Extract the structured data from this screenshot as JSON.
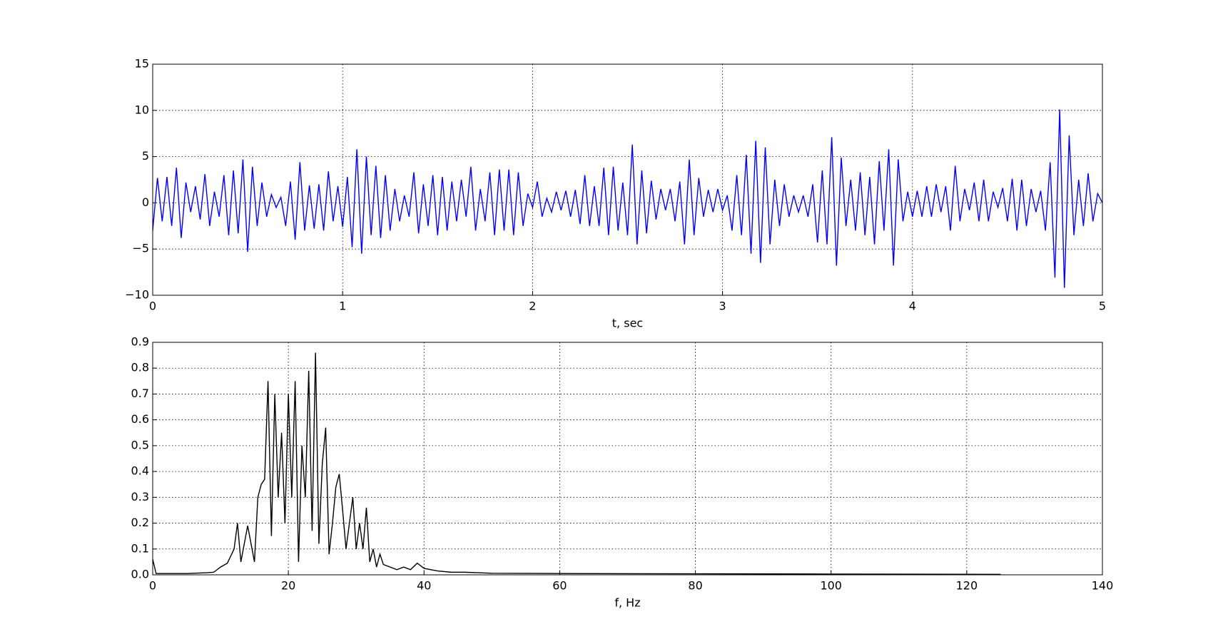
{
  "chart_data": [
    {
      "type": "line",
      "x_label": "t, sec",
      "grid": true,
      "xlim": [
        0,
        5
      ],
      "xticks": [
        0,
        1,
        2,
        3,
        4,
        5
      ],
      "ylim": [
        -10,
        15
      ],
      "yticks": [
        {
          "value": -10,
          "label": "−10"
        },
        {
          "value": -5,
          "label": "−5"
        },
        0,
        5,
        10,
        15
      ],
      "x": [
        0,
        0.025,
        0.05,
        0.075,
        0.1,
        0.125,
        0.15,
        0.175,
        0.2,
        0.225,
        0.25,
        0.275,
        0.3,
        0.325,
        0.35,
        0.375,
        0.4,
        0.425,
        0.45,
        0.475,
        0.5,
        0.525,
        0.55,
        0.575,
        0.6,
        0.625,
        0.65,
        0.675,
        0.7,
        0.725,
        0.75,
        0.775,
        0.8,
        0.825,
        0.85,
        0.875,
        0.9,
        0.925,
        0.95,
        0.975,
        1,
        1.025,
        1.05,
        1.075,
        1.1,
        1.125,
        1.15,
        1.175,
        1.2,
        1.225,
        1.25,
        1.275,
        1.3,
        1.325,
        1.35,
        1.375,
        1.4,
        1.425,
        1.45,
        1.475,
        1.5,
        1.525,
        1.55,
        1.575,
        1.6,
        1.625,
        1.65,
        1.675,
        1.7,
        1.725,
        1.75,
        1.775,
        1.8,
        1.825,
        1.85,
        1.875,
        1.9,
        1.925,
        1.95,
        1.975,
        2,
        2.025,
        2.05,
        2.075,
        2.1,
        2.125,
        2.15,
        2.175,
        2.2,
        2.225,
        2.25,
        2.275,
        2.3,
        2.325,
        2.35,
        2.375,
        2.4,
        2.425,
        2.45,
        2.475,
        2.5,
        2.525,
        2.55,
        2.575,
        2.6,
        2.625,
        2.65,
        2.675,
        2.7,
        2.725,
        2.75,
        2.775,
        2.8,
        2.825,
        2.85,
        2.875,
        2.9,
        2.925,
        2.95,
        2.975,
        3,
        3.025,
        3.05,
        3.075,
        3.1,
        3.125,
        3.15,
        3.175,
        3.2,
        3.225,
        3.25,
        3.275,
        3.3,
        3.325,
        3.35,
        3.375,
        3.4,
        3.425,
        3.45,
        3.475,
        3.5,
        3.525,
        3.55,
        3.575,
        3.6,
        3.625,
        3.65,
        3.675,
        3.7,
        3.725,
        3.75,
        3.775,
        3.8,
        3.825,
        3.85,
        3.875,
        3.9,
        3.925,
        3.95,
        3.975,
        4,
        4.025,
        4.05,
        4.075,
        4.1,
        4.125,
        4.15,
        4.175,
        4.2,
        4.225,
        4.25,
        4.275,
        4.3,
        4.325,
        4.35,
        4.375,
        4.4,
        4.425,
        4.45,
        4.475,
        4.5,
        4.525,
        4.55,
        4.575,
        4.6,
        4.625,
        4.65,
        4.675,
        4.7,
        4.725,
        4.75,
        4.775,
        4.8,
        4.825,
        4.85,
        4.875,
        4.9,
        4.925,
        4.95,
        4.975,
        5
      ],
      "series": [
        {
          "color": "#0000ff",
          "values": [
            -3,
            2.7,
            -2,
            2.8,
            -2.5,
            3.8,
            -3.8,
            2.2,
            -1,
            1.8,
            -1.8,
            3.1,
            -2.5,
            1.2,
            -1.5,
            3,
            -3.5,
            3.5,
            -3.3,
            4.7,
            -5.3,
            3.9,
            -2.5,
            2.2,
            -1.5,
            0.9,
            -0.5,
            0.6,
            -2.5,
            2.3,
            -4,
            4.4,
            -3,
            1.9,
            -2.8,
            2,
            -3,
            3.4,
            -2,
            1.8,
            -2.6,
            2.8,
            -4.8,
            5.8,
            -5.5,
            5,
            -3.5,
            4,
            -3.8,
            3,
            -3,
            1.5,
            -2,
            0.8,
            -1.5,
            3.3,
            -3.3,
            2,
            -2.5,
            3,
            -3.5,
            2.8,
            -3,
            2.3,
            -2,
            2.5,
            -1.5,
            3.9,
            -3,
            1.5,
            -2,
            3.3,
            -3.5,
            3.6,
            -3,
            3.6,
            -3.5,
            3.3,
            -2.5,
            1,
            -0.5,
            2.3,
            -1.5,
            0.5,
            -1,
            1.2,
            -0.8,
            1.3,
            -1.5,
            1.4,
            -2.3,
            3,
            -2.5,
            1.8,
            -2.5,
            3.8,
            -3.5,
            3.9,
            -3,
            2.2,
            -3.5,
            6.3,
            -4.5,
            3.5,
            -3.3,
            2.4,
            -1.8,
            1.5,
            -0.8,
            1.5,
            -2,
            2.3,
            -4.5,
            4.7,
            -3.5,
            2.7,
            -1.5,
            1.4,
            -1,
            1.5,
            -0.8,
            0.8,
            -3,
            3,
            -3.5,
            5.2,
            -5.5,
            6.7,
            -6.5,
            6,
            -4.5,
            2.5,
            -2.5,
            2,
            -1.5,
            0.8,
            -1,
            0.8,
            -1.5,
            2,
            -4.3,
            3.5,
            -4.5,
            7.1,
            -6.8,
            4.9,
            -2.5,
            2.5,
            -3,
            3.3,
            -3.5,
            2.8,
            -4.5,
            4.5,
            -3,
            5.8,
            -6.8,
            4.7,
            -2,
            1.2,
            -1.5,
            1.3,
            -1.5,
            1.8,
            -1.5,
            2,
            -1,
            1.8,
            -3,
            4,
            -2,
            1.5,
            -0.8,
            2.2,
            -2,
            2.5,
            -2,
            1.2,
            -0.5,
            1.6,
            -2,
            2.6,
            -3,
            2.5,
            -2.5,
            1.5,
            -1,
            1.3,
            -3,
            4.4,
            -8.1,
            10.1,
            -9.2,
            7.3,
            -3.5,
            2.5,
            -2.5,
            3.2,
            -2,
            1,
            0
          ]
        }
      ]
    },
    {
      "type": "line",
      "x_label": "f, Hz",
      "grid": true,
      "xlim": [
        0,
        140
      ],
      "xticks": [
        0,
        20,
        40,
        60,
        80,
        100,
        120,
        140
      ],
      "ylim": [
        0,
        0.9
      ],
      "yticks": [
        {
          "value": 0,
          "label": "0.0"
        },
        0.1,
        0.2,
        0.3,
        0.4,
        0.5,
        0.6,
        0.7,
        0.8,
        0.9
      ],
      "x": [
        0,
        0.5,
        1,
        5,
        8,
        9,
        10,
        11,
        12,
        12.5,
        13,
        14,
        15,
        15.5,
        16,
        16.5,
        17,
        17.5,
        18,
        18.5,
        19,
        19.5,
        20,
        20.5,
        21,
        21.5,
        22,
        22.5,
        23,
        23.5,
        24,
        24.5,
        25,
        25.5,
        26,
        26.5,
        27,
        27.5,
        28,
        28.5,
        29,
        29.5,
        30,
        30.5,
        31,
        31.5,
        32,
        32.5,
        33,
        33.5,
        34,
        35,
        36,
        37,
        38,
        39,
        40,
        41,
        42,
        44,
        46,
        48,
        50,
        60,
        80,
        100,
        125
      ],
      "series": [
        {
          "color": "#000000",
          "values": [
            0.06,
            0.005,
            0.005,
            0.005,
            0.008,
            0.01,
            0.03,
            0.045,
            0.1,
            0.2,
            0.05,
            0.19,
            0.05,
            0.3,
            0.35,
            0.37,
            0.75,
            0.15,
            0.7,
            0.3,
            0.55,
            0.2,
            0.7,
            0.3,
            0.75,
            0.05,
            0.5,
            0.3,
            0.79,
            0.17,
            0.86,
            0.12,
            0.43,
            0.57,
            0.08,
            0.2,
            0.34,
            0.39,
            0.25,
            0.1,
            0.2,
            0.3,
            0.1,
            0.2,
            0.1,
            0.26,
            0.05,
            0.1,
            0.03,
            0.08,
            0.04,
            0.03,
            0.02,
            0.03,
            0.02,
            0.045,
            0.025,
            0.02,
            0.015,
            0.01,
            0.01,
            0.008,
            0.006,
            0.005,
            0.004,
            0.003,
            0.002
          ]
        }
      ]
    }
  ]
}
